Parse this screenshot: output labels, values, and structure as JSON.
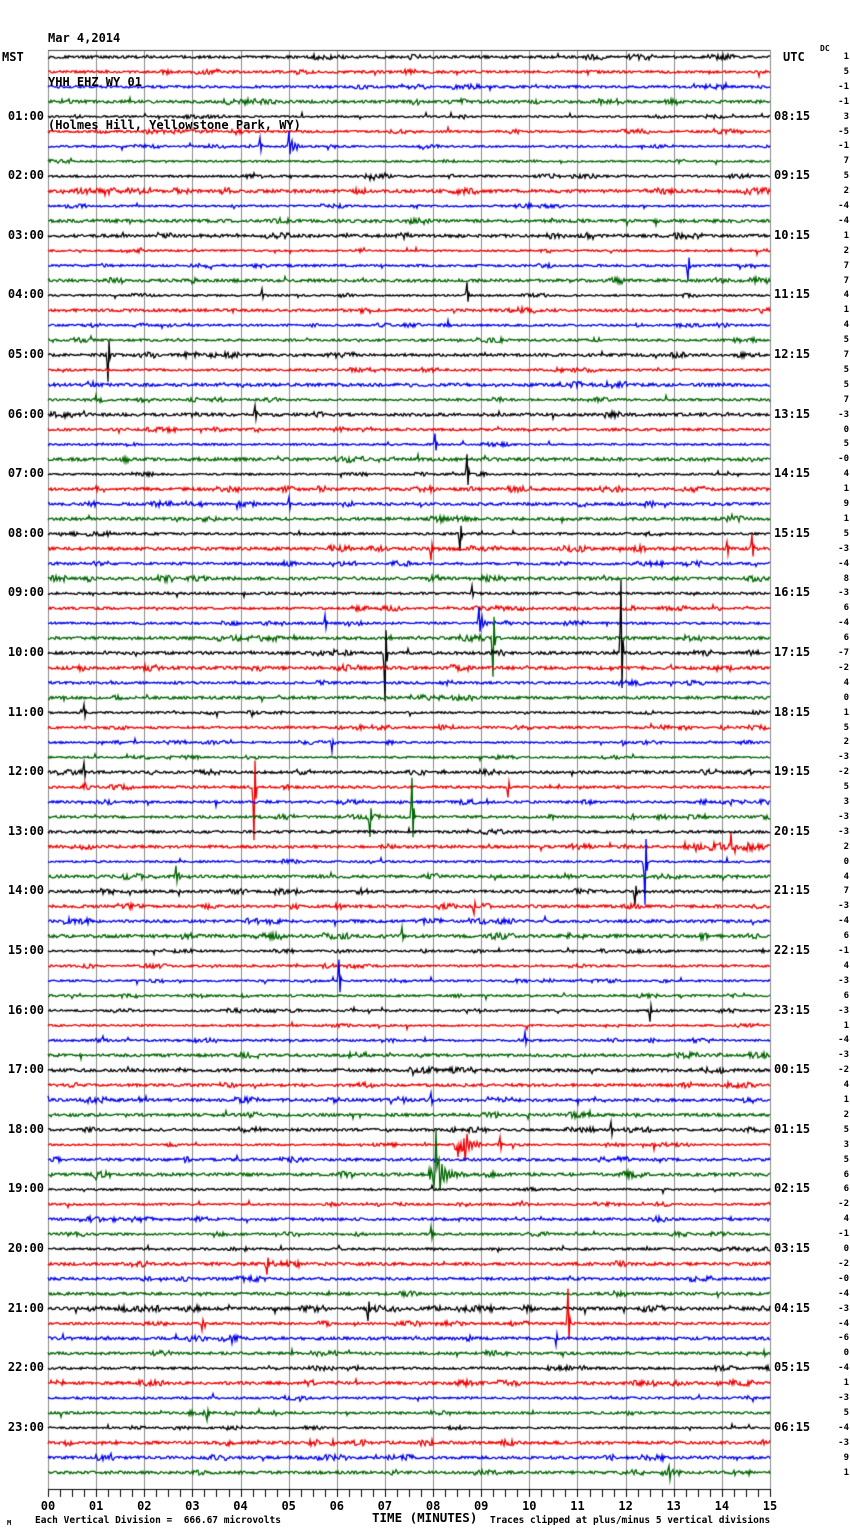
{
  "header": {
    "date": "Mar 4,2014",
    "station": "YHH EHZ WY 01",
    "location": "(Holmes Hill, Yellowstone Park, WY)"
  },
  "axes": {
    "left_label": "MST",
    "right_label": "UTC",
    "dc_label": "DC",
    "x_title": "TIME (MINUTES)",
    "x_tick_labels": [
      "00",
      "01",
      "02",
      "03",
      "04",
      "05",
      "06",
      "07",
      "08",
      "09",
      "10",
      "11",
      "12",
      "13",
      "14",
      "15"
    ]
  },
  "footer": {
    "left": "Each Vertical Division =  666.67 microvolts",
    "right": "Traces clipped at plus/minus 5 vertical divisions",
    "margin_mark": "M"
  },
  "chart_data": {
    "type": "line",
    "title": "Helicorder seismogram, station YHH EHZ WY 01, Mar 4 2014",
    "minutes_per_line": 15,
    "lines_per_hour": 4,
    "num_lines": 96,
    "trace_color_cycle": [
      "#000000",
      "#f00000",
      "#0000f0",
      "#006600"
    ],
    "grid_color": "#8a8a8a",
    "border_color": "#444444",
    "clip_divisions": 5,
    "mst_labels": [
      "01:00",
      "02:00",
      "03:00",
      "04:00",
      "05:00",
      "06:00",
      "07:00",
      "08:00",
      "09:00",
      "10:00",
      "11:00",
      "12:00",
      "13:00",
      "14:00",
      "15:00",
      "16:00",
      "17:00",
      "18:00",
      "19:00",
      "20:00",
      "21:00",
      "22:00",
      "23:00"
    ],
    "utc_labels": [
      "08:15",
      "09:15",
      "10:15",
      "11:15",
      "12:15",
      "13:15",
      "14:15",
      "15:15",
      "16:15",
      "17:15",
      "18:15",
      "19:15",
      "20:15",
      "21:15",
      "22:15",
      "23:15",
      "00:15",
      "01:15",
      "02:15",
      "03:15",
      "04:15",
      "05:15",
      "06:15"
    ],
    "dc_offsets": [
      "1",
      "5",
      "-1",
      "-1",
      "3",
      "-5",
      "-1",
      "7",
      "5",
      "2",
      "-4",
      "-4",
      "1",
      "2",
      "7",
      "7",
      "4",
      "1",
      "4",
      "5",
      "7",
      "5",
      "5",
      "7",
      "-3",
      "0",
      "5",
      "-0",
      "4",
      "1",
      "9",
      "1",
      "5",
      "-3",
      "-4",
      "8",
      "-3",
      "6",
      "-4",
      "6",
      "-7",
      "-2",
      "4",
      "0",
      "1",
      "5",
      "2",
      "-3",
      "-2",
      "5",
      "3",
      "-3",
      "-3",
      "2",
      "0",
      "4",
      "7",
      "-3",
      "-4",
      "6",
      "-1",
      "4",
      "-3",
      "6",
      "-3",
      "1",
      "-4",
      "-3",
      "-2",
      "4",
      "1",
      "2",
      "5",
      "3",
      "5",
      "6",
      "6",
      "-2",
      "4",
      "-1",
      "0",
      "-2",
      "-0",
      "-4",
      "-3",
      "-4",
      "-6",
      "0",
      "-4",
      "1",
      "-3",
      "5",
      "-4",
      "-3",
      "9",
      "1"
    ],
    "events": [
      {
        "row": 7,
        "min": 4.4,
        "amp": 9
      },
      {
        "row": 7,
        "min": 5.0,
        "amp": 16,
        "coda": 0.35
      },
      {
        "row": 15,
        "min": 13.3,
        "amp": -14
      },
      {
        "row": 17,
        "min": 4.45,
        "amp": 7
      },
      {
        "row": 17,
        "min": 8.7,
        "amp": 14
      },
      {
        "row": 21,
        "min": 1.25,
        "amp": -26
      },
      {
        "row": 25,
        "min": 4.3,
        "amp": 8
      },
      {
        "row": 27,
        "min": 8.05,
        "amp": 10
      },
      {
        "row": 29,
        "min": 8.7,
        "amp": 20
      },
      {
        "row": 31,
        "min": 5.0,
        "amp": 7
      },
      {
        "row": 33,
        "min": 8.55,
        "amp": -18
      },
      {
        "row": 34,
        "min": 7.95,
        "amp": -12
      },
      {
        "row": 34,
        "min": 14.1,
        "amp": 8
      },
      {
        "row": 34,
        "min": 14.62,
        "amp": 15
      },
      {
        "row": 37,
        "min": 8.8,
        "amp": 7
      },
      {
        "row": 39,
        "min": 5.75,
        "amp": 8
      },
      {
        "row": 39,
        "min": 8.95,
        "amp": 16,
        "coda": 0.3
      },
      {
        "row": 40,
        "min": 9.25,
        "amp": -40
      },
      {
        "row": 41,
        "min": 7.0,
        "amp": -48
      },
      {
        "row": 41,
        "min": 11.9,
        "amp": 72
      },
      {
        "row": 45,
        "min": 0.75,
        "amp": 8
      },
      {
        "row": 47,
        "min": 5.9,
        "amp": -8
      },
      {
        "row": 49,
        "min": 0.75,
        "amp": 10
      },
      {
        "row": 50,
        "min": 4.27,
        "amp": -54
      },
      {
        "row": 50,
        "min": 9.55,
        "amp": -10
      },
      {
        "row": 52,
        "min": 6.7,
        "amp": -18
      },
      {
        "row": 52,
        "min": 7.57,
        "amp": 40
      },
      {
        "row": 54,
        "min": 14.2,
        "amp": 7,
        "burst": 0.85
      },
      {
        "row": 55,
        "min": 12.4,
        "amp": -44
      },
      {
        "row": 56,
        "min": 2.65,
        "amp": 12,
        "coda": 0.3
      },
      {
        "row": 57,
        "min": 12.2,
        "amp": -13
      },
      {
        "row": 58,
        "min": 8.85,
        "amp": -9
      },
      {
        "row": 60,
        "min": 7.35,
        "amp": 9
      },
      {
        "row": 63,
        "min": 6.05,
        "amp": 22
      },
      {
        "row": 65,
        "min": 12.5,
        "amp": -11
      },
      {
        "row": 67,
        "min": 9.9,
        "amp": 8
      },
      {
        "row": 71,
        "min": 7.95,
        "amp": 8
      },
      {
        "row": 73,
        "min": 11.7,
        "amp": 9
      },
      {
        "row": 74,
        "min": 8.57,
        "amp": 26,
        "burst": 0.12,
        "coda": 0.5
      },
      {
        "row": 74,
        "min": 9.4,
        "amp": 8
      },
      {
        "row": 76,
        "min": 8.07,
        "amp": 28,
        "burst": 0.15,
        "coda": 0.6
      },
      {
        "row": 80,
        "min": 7.95,
        "amp": 8
      },
      {
        "row": 82,
        "min": 4.55,
        "amp": -12
      },
      {
        "row": 85,
        "min": 6.65,
        "amp": -13
      },
      {
        "row": 86,
        "min": 3.2,
        "amp": -8
      },
      {
        "row": 86,
        "min": 10.8,
        "amp": 34
      },
      {
        "row": 87,
        "min": 10.55,
        "amp": -7
      },
      {
        "row": 92,
        "min": 3.3,
        "amp": -8
      },
      {
        "row": 96,
        "min": 12.9,
        "amp": 9
      }
    ]
  }
}
